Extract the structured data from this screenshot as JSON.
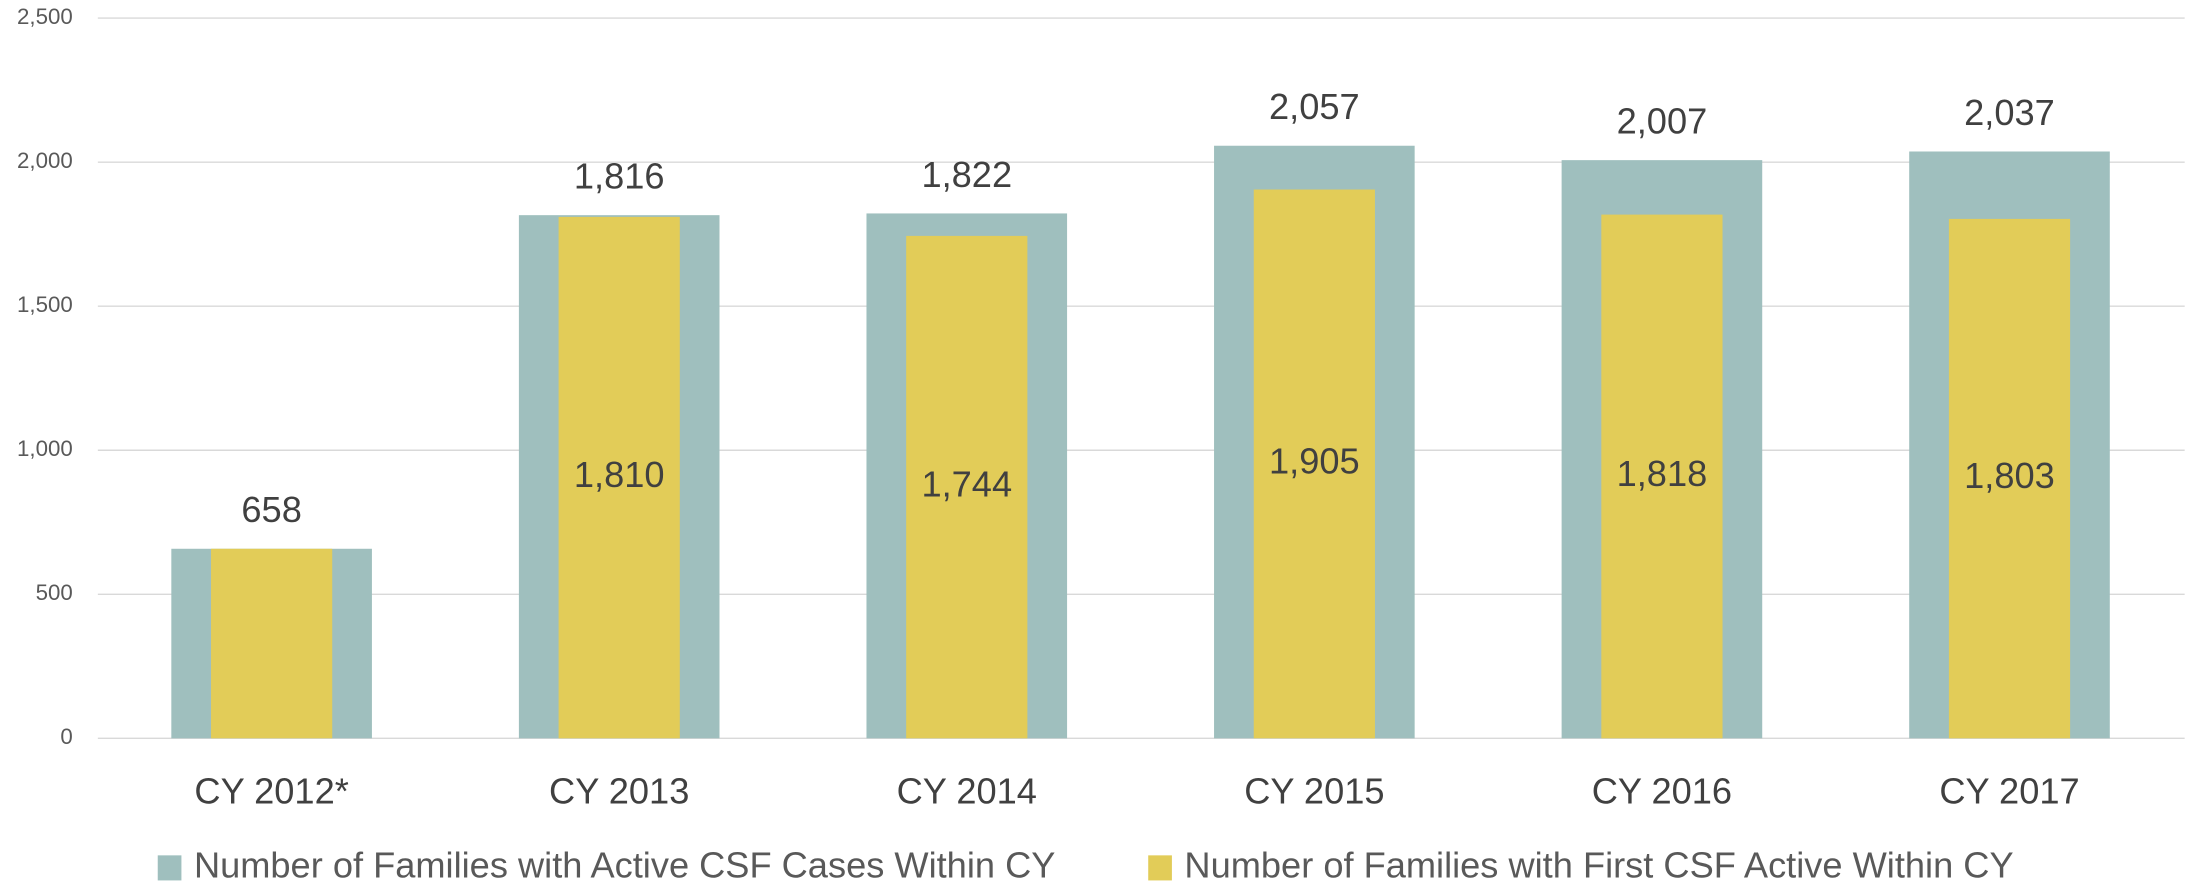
{
  "chart_data": {
    "type": "bar",
    "categories": [
      "CY 2012*",
      "CY 2013",
      "CY 2014",
      "CY 2015",
      "CY 2016",
      "CY 2017"
    ],
    "series": [
      {
        "name": "Number of Families with Active CSF Cases Within CY",
        "color": "#9fbfbe",
        "values": [
          658,
          1816,
          1822,
          2057,
          2007,
          2037
        ],
        "value_labels": [
          "658",
          "1,816",
          "1,822",
          "2,057",
          "2,007",
          "2,037"
        ]
      },
      {
        "name": "Number of Families with First CSF Active Within CY",
        "color": "#e2cc58",
        "values": [
          658,
          1810,
          1744,
          1905,
          1818,
          1803
        ],
        "value_labels": [
          null,
          "1,810",
          "1,744",
          "1,905",
          "1,818",
          "1,803"
        ]
      }
    ],
    "ylim": [
      0,
      2500
    ],
    "yticks": [
      0,
      500,
      {
        "value": 1000,
        "label": "1,000"
      },
      {
        "value": 1500,
        "label": "1,500"
      },
      {
        "value": 2000,
        "label": "2,000"
      },
      {
        "value": 2500,
        "label": "2,500"
      }
    ],
    "grid": true,
    "legend": "bottom"
  }
}
